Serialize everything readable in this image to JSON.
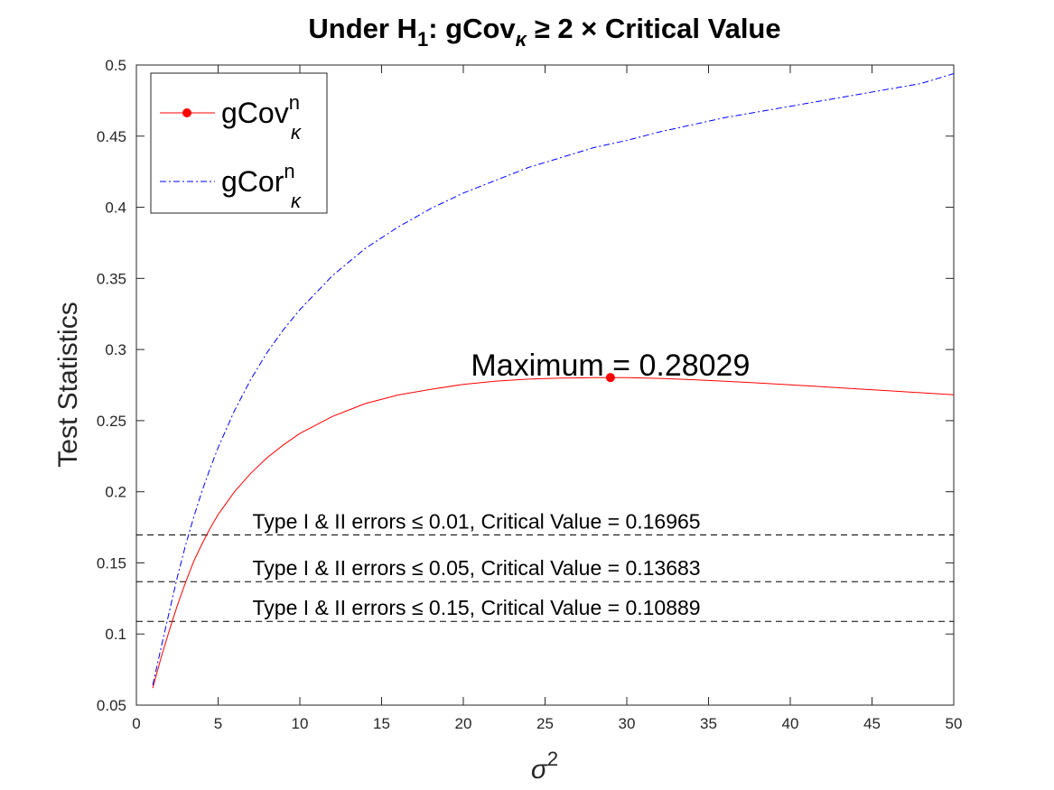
{
  "chart_data": {
    "type": "line",
    "title": {
      "p1": "Under H",
      "p1_sub": "1",
      "p2": ": gCov",
      "p2_sub": "κ",
      "p3": " ≥ 2 × Critical Value"
    },
    "xlabel": {
      "base": "σ",
      "sup": "2"
    },
    "ylabel": "Test Statistics",
    "xlim": [
      0,
      50
    ],
    "ylim": [
      0.05,
      0.5
    ],
    "xticks": [
      0,
      5,
      10,
      15,
      20,
      25,
      30,
      35,
      40,
      45,
      50
    ],
    "yticks": [
      0.05,
      0.1,
      0.15,
      0.2,
      0.25,
      0.3,
      0.35,
      0.4,
      0.45,
      0.5
    ],
    "grid": false,
    "legend_position": "top-left",
    "series": [
      {
        "name": {
          "base": "gCov",
          "sup": "n",
          "sub": "κ"
        },
        "color": "#ff0000",
        "style": "solid",
        "marker": "dot",
        "x": [
          1,
          1.5,
          2,
          2.5,
          3,
          3.5,
          4,
          4.5,
          5,
          6,
          7,
          8,
          9,
          10,
          12,
          14,
          16,
          18,
          20,
          22,
          24,
          26,
          28,
          29,
          30,
          32,
          34,
          36,
          38,
          40,
          42,
          44,
          46,
          48,
          50
        ],
        "y": [
          0.062,
          0.083,
          0.102,
          0.12,
          0.136,
          0.151,
          0.163,
          0.174,
          0.184,
          0.2,
          0.213,
          0.224,
          0.233,
          0.241,
          0.253,
          0.262,
          0.268,
          0.272,
          0.2755,
          0.2778,
          0.2792,
          0.2799,
          0.2802,
          0.28029,
          0.2802,
          0.2797,
          0.2788,
          0.2777,
          0.2765,
          0.2752,
          0.2738,
          0.2724,
          0.271,
          0.2696,
          0.2682
        ]
      },
      {
        "name": {
          "base": "gCor",
          "sup": "n",
          "sub": "κ"
        },
        "color": "#0000ff",
        "style": "dashdot",
        "marker": "none",
        "x": [
          1,
          1.5,
          2,
          2.5,
          3,
          3.5,
          4,
          4.5,
          5,
          6,
          7,
          8,
          9,
          10,
          12,
          14,
          16,
          18,
          20,
          22,
          24,
          26,
          28,
          30,
          32,
          34,
          36,
          38,
          40,
          42,
          44,
          46,
          48,
          50
        ],
        "y": [
          0.064,
          0.09,
          0.115,
          0.14,
          0.162,
          0.182,
          0.2,
          0.216,
          0.231,
          0.257,
          0.279,
          0.298,
          0.314,
          0.328,
          0.352,
          0.371,
          0.386,
          0.399,
          0.41,
          0.419,
          0.428,
          0.435,
          0.442,
          0.447,
          0.453,
          0.458,
          0.463,
          0.467,
          0.471,
          0.475,
          0.479,
          0.483,
          0.487,
          0.494
        ]
      }
    ],
    "maximum_point": {
      "x": 29,
      "y": 0.28029,
      "label": "Maximum = 0.28029",
      "color": "#ff0000"
    },
    "reference_lines": [
      {
        "y": 0.16965,
        "label": "Type I & II errors ≤ 0.01, Critical Value = 0.16965",
        "color": "#000000",
        "style": "dashed"
      },
      {
        "y": 0.13683,
        "label": "Type I & II errors ≤ 0.05, Critical Value = 0.13683",
        "color": "#000000",
        "style": "dashed"
      },
      {
        "y": 0.10889,
        "label": "Type I & II errors ≤ 0.15, Critical Value = 0.10889",
        "color": "#000000",
        "style": "dashed"
      }
    ]
  }
}
